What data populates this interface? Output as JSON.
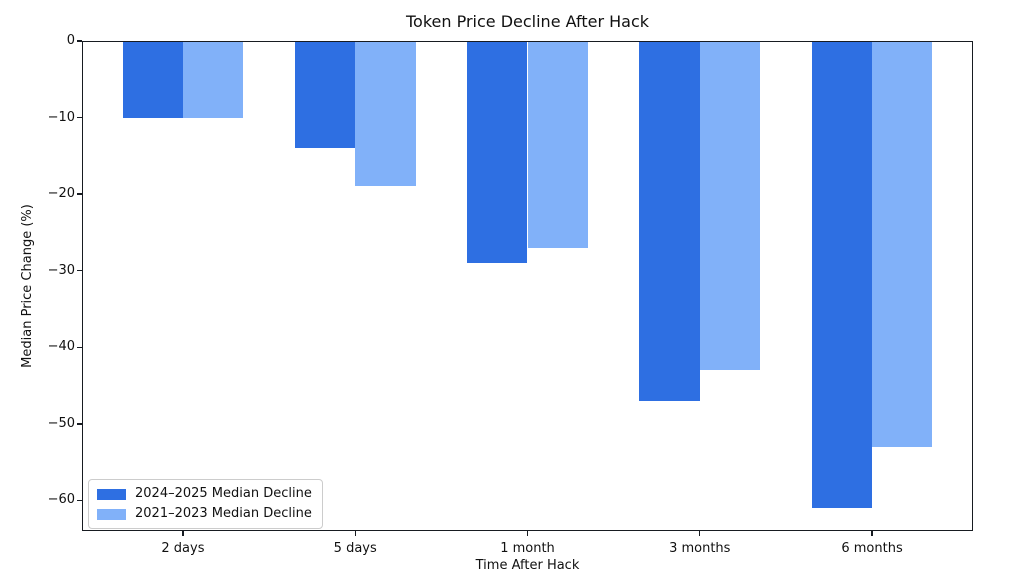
{
  "chart_data": {
    "type": "bar",
    "title": "Token Price Decline After Hack",
    "xlabel": "Time After Hack",
    "ylabel": "Median Price Change (%)",
    "categories": [
      "2 days",
      "5 days",
      "1 month",
      "3 months",
      "6 months"
    ],
    "series": [
      {
        "name": "2024–2025 Median Decline",
        "color": "#2e6fe2",
        "values": [
          -10,
          -14,
          -29,
          -47,
          -61
        ]
      },
      {
        "name": "2021–2023 Median Decline",
        "color": "#81b1f9",
        "values": [
          -10,
          -19,
          -27,
          -43,
          -53
        ]
      }
    ],
    "ylim": [
      -64,
      0
    ],
    "yticks": [
      0,
      -10,
      -20,
      -30,
      -40,
      -50,
      -60
    ],
    "ytick_labels": [
      "0",
      "−10",
      "−20",
      "−30",
      "−40",
      "−50",
      "−60"
    ],
    "grid": false,
    "legend_position": "lower left",
    "bar_width_units": 0.35,
    "spine_color": "#171b21",
    "background_color": "#ffffff"
  }
}
